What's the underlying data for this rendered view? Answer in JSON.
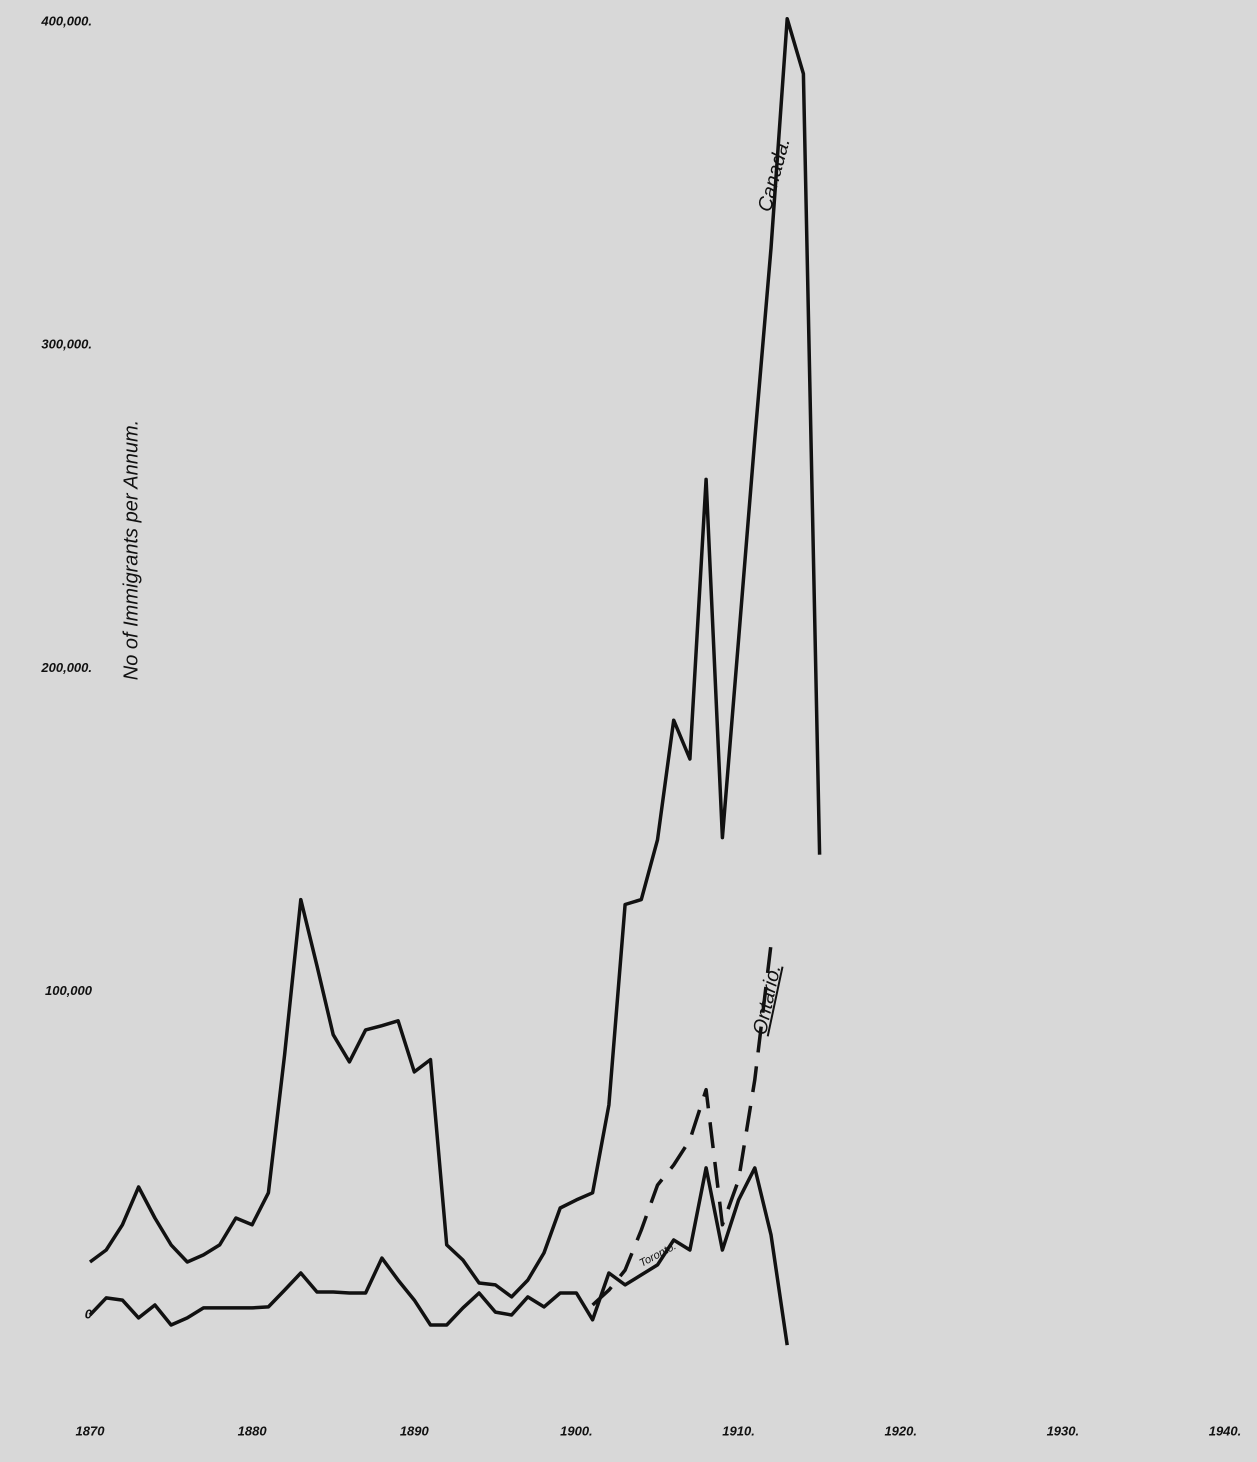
{
  "chart_data": {
    "type": "line",
    "y_label": "No of Immigrants per Annum.",
    "x": [
      1870,
      1871,
      1872,
      1873,
      1874,
      1875,
      1876,
      1877,
      1878,
      1879,
      1880,
      1881,
      1882,
      1883,
      1884,
      1885,
      1886,
      1887,
      1888,
      1889,
      1890,
      1891,
      1892,
      1893,
      1894,
      1895,
      1896,
      1897,
      1898,
      1899,
      1900,
      1901,
      1902,
      1903,
      1904,
      1905,
      1906,
      1907,
      1908,
      1909,
      1910,
      1911,
      1912,
      1913,
      1914,
      1915
    ],
    "series": [
      {
        "name": "Canada.",
        "color": "#111111",
        "dashed": false,
        "values": [
          16400,
          20100,
          27900,
          39600,
          30000,
          21700,
          16400,
          18600,
          21700,
          30000,
          27900,
          37800,
          80500,
          128500,
          108000,
          86700,
          78300,
          88200,
          89500,
          91000,
          75200,
          79000,
          21700,
          17000,
          9900,
          9300,
          5600,
          10800,
          19200,
          33100,
          35600,
          37800,
          65000,
          127000,
          128500,
          147000,
          184000,
          172000,
          258500,
          147700,
          209000,
          271000,
          330000,
          401000,
          384000,
          142400
        ]
      },
      {
        "name": "Ontario.",
        "color": "#111111",
        "dashed": true,
        "values": [
          null,
          null,
          null,
          null,
          null,
          null,
          null,
          null,
          null,
          null,
          null,
          null,
          null,
          null,
          null,
          null,
          null,
          null,
          null,
          null,
          null,
          null,
          null,
          null,
          null,
          null,
          null,
          null,
          null,
          null,
          null,
          3100,
          7700,
          13900,
          26300,
          40200,
          46400,
          54200,
          69700,
          27900,
          41800,
          72800,
          114600,
          null,
          null,
          null
        ]
      },
      {
        "name": "Toronto.",
        "color": "#111111",
        "dashed": false,
        "values": [
          0,
          5300,
          4600,
          -900,
          3100,
          -3100,
          -900,
          2200,
          2200,
          2200,
          2200,
          2500,
          7700,
          13000,
          7100,
          7100,
          6800,
          6800,
          17600,
          10800,
          4600,
          -3100,
          -3100,
          2200,
          6800,
          900,
          0,
          5600,
          2500,
          6800,
          6800,
          -1500,
          13000,
          9300,
          12400,
          15500,
          23200,
          20100,
          45500,
          20100,
          35600,
          45500,
          24800,
          -9300,
          null,
          null
        ]
      }
    ],
    "xlim": [
      1870,
      1940
    ],
    "xticks": [
      1870,
      1880,
      1890,
      {
        "value": 1900,
        "label": "1900."
      },
      {
        "value": 1910,
        "label": "1910."
      },
      {
        "value": 1920,
        "label": "1920."
      },
      {
        "value": 1930,
        "label": "1930."
      },
      {
        "value": 1940,
        "label": "1940."
      }
    ],
    "ylim": [
      0,
      400000
    ],
    "yticks": [
      0,
      {
        "value": 100000,
        "label": "100,000"
      },
      {
        "value": 200000,
        "label": "200,000."
      },
      {
        "value": 300000,
        "label": "300,000."
      },
      {
        "value": 400000,
        "label": "400,000."
      }
    ],
    "grid": false
  }
}
